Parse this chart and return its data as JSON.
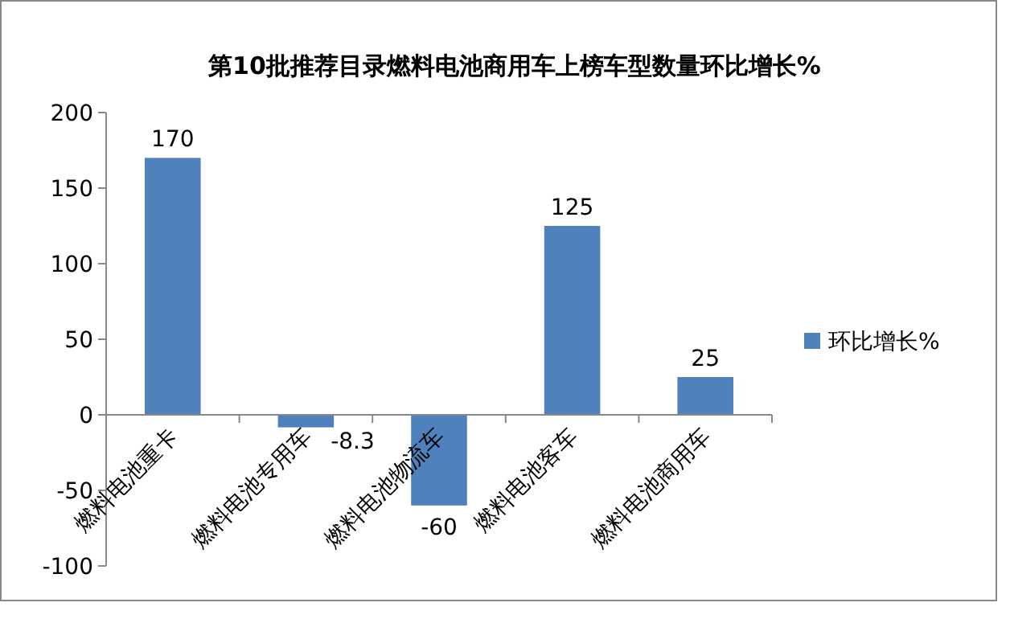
{
  "chart_data": {
    "type": "bar",
    "title": "第10批推荐目录燃料电池商用车上榜车型数量环比增长%",
    "categories": [
      "燃料电池重卡",
      "燃料电池专用车",
      "燃料电池物流车",
      "燃料电池客车",
      "燃料电池商用车"
    ],
    "series": [
      {
        "name": "环比增长%",
        "color": "#4f81bd",
        "values": [
          170,
          -8.3,
          -60,
          125,
          25
        ]
      }
    ],
    "ylim": [
      -100,
      200
    ],
    "yticks": [
      -100,
      -50,
      0,
      50,
      100,
      150,
      200
    ],
    "data_labels": true,
    "legend": "right",
    "grid": false
  }
}
